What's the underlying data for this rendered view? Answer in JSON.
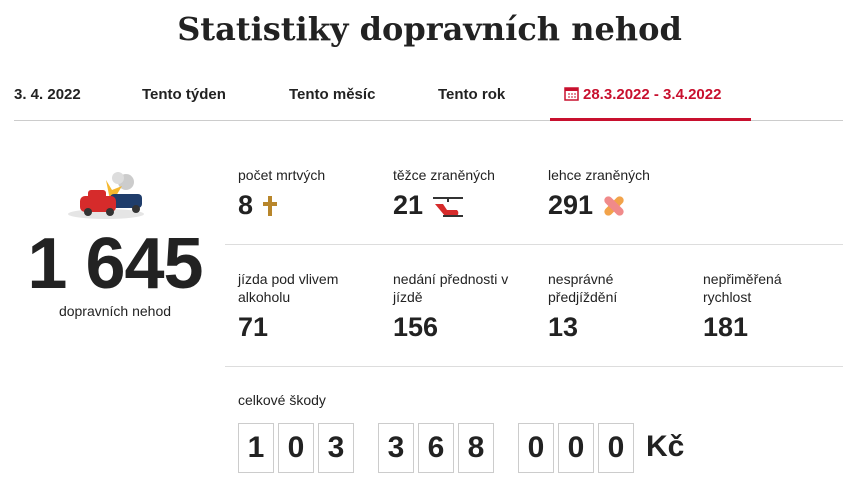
{
  "header": {
    "title": "Statistiky dopravních nehod"
  },
  "tabs": [
    {
      "label": "3. 4. 2022",
      "active": false
    },
    {
      "label": "Tento týden",
      "active": false
    },
    {
      "label": "Tento měsíc",
      "active": false
    },
    {
      "label": "Tento rok",
      "active": false
    },
    {
      "label": "28.3.2022 - 3.4.2022",
      "active": true
    }
  ],
  "total": {
    "value": "1 645",
    "label": "dopravních nehod"
  },
  "stats": [
    [
      {
        "label": "počet mrtvých",
        "value": "8"
      },
      {
        "label": "těžce zraněných",
        "value": "21"
      },
      {
        "label": "lehce zraněných",
        "value": "291"
      }
    ],
    [
      {
        "label": "jízda pod vlivem alkoholu",
        "value": "71"
      },
      {
        "label": "nedání přednosti v jízdě",
        "value": "156"
      },
      {
        "label": "nesprávné předjíždění",
        "value": "13"
      },
      {
        "label": "nepřiměřená rychlost",
        "value": "181"
      }
    ]
  ],
  "damage": {
    "label": "celkové škody",
    "digits": [
      [
        "1",
        "0",
        "3"
      ],
      [
        "3",
        "6",
        "8"
      ],
      [
        "0",
        "0",
        "0"
      ]
    ],
    "currency": "Kč"
  }
}
